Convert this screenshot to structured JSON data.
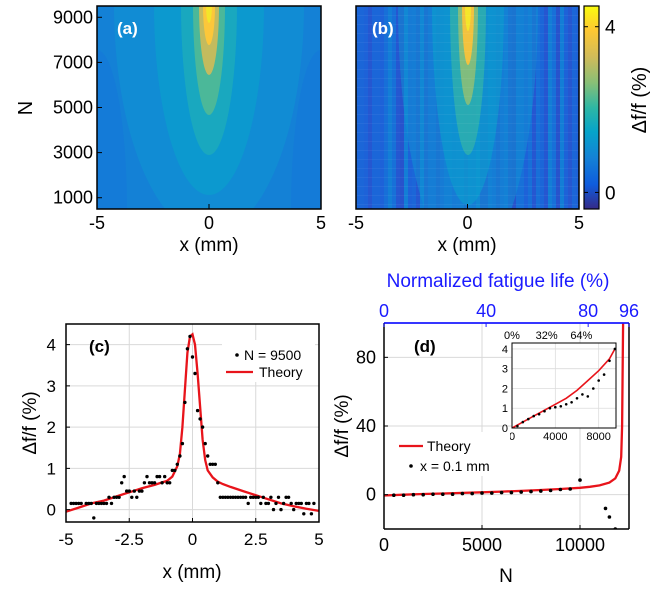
{
  "figure": {
    "panels": [
      "(a)",
      "(b)",
      "(c)",
      "(d)"
    ]
  },
  "chart_data": [
    {
      "type": "heatmap",
      "panel": "(a)",
      "xlabel": "x (mm)",
      "ylabel": "N",
      "xlim": [
        -5,
        5
      ],
      "ylim": [
        500,
        9500
      ],
      "xticks": [
        -5,
        0,
        5
      ],
      "xtick_labels": [
        "-5",
        "0",
        "5"
      ],
      "yticks": [
        1000,
        3000,
        5000,
        7000,
        9000
      ],
      "ytick_labels": [
        "1000",
        "3000",
        "5000",
        "7000",
        "9000"
      ],
      "colormap": "parula",
      "peak_x": 0,
      "peak_value_percent": 4.2
    },
    {
      "type": "heatmap",
      "panel": "(b)",
      "xlabel": "x (mm)",
      "ylabel": "",
      "xlim": [
        -5,
        5
      ],
      "ylim": [
        500,
        9500
      ],
      "xticks": [
        -5,
        0,
        5
      ],
      "xtick_labels": [
        "-5",
        "0",
        "5"
      ],
      "colormap": "parula",
      "peak_x": 0,
      "peak_value_percent": 4.3,
      "colorbar": {
        "label": "Δf/f (%)",
        "range": [
          -0.4,
          4.5
        ],
        "ticks": [
          0,
          4
        ],
        "tick_labels": [
          "0",
          "4"
        ]
      }
    },
    {
      "type": "scatter",
      "panel": "(c)",
      "xlabel": "x (mm)",
      "ylabel": "Δf/f (%)",
      "xlim": [
        -5,
        5
      ],
      "ylim": [
        -0.3,
        4.5
      ],
      "xticks": [
        -5,
        -2.5,
        0,
        2.5,
        5
      ],
      "xtick_labels": [
        "-5",
        "-2.5",
        "0",
        "2.5",
        "5"
      ],
      "yticks": [
        0,
        1,
        2,
        3,
        4
      ],
      "ytick_labels": [
        "0",
        "1",
        "2",
        "3",
        "4"
      ],
      "grid": true,
      "legend_position": "top-right",
      "series": [
        {
          "name": "N = 9500",
          "style": "dots",
          "color": "#000000",
          "x": [
            -4.8,
            -4.7,
            -4.6,
            -4.5,
            -4.4,
            -4.3,
            -4.2,
            -4.1,
            -4.0,
            -3.9,
            -3.8,
            -3.7,
            -3.6,
            -3.5,
            -3.4,
            -3.3,
            -3.2,
            -3.1,
            -3.0,
            -2.9,
            -2.8,
            -2.7,
            -2.6,
            -2.5,
            -2.4,
            -2.3,
            -2.2,
            -2.1,
            -2.0,
            -1.9,
            -1.8,
            -1.7,
            -1.6,
            -1.5,
            -1.4,
            -1.3,
            -1.2,
            -1.1,
            -1.0,
            -0.9,
            -0.8,
            -0.7,
            -0.6,
            -0.5,
            -0.4,
            -0.3,
            -0.2,
            -0.1,
            0.0,
            0.1,
            0.2,
            0.3,
            0.4,
            0.5,
            0.6,
            0.7,
            0.8,
            0.9,
            1.0,
            1.1,
            1.2,
            1.3,
            1.4,
            1.5,
            1.6,
            1.7,
            1.8,
            1.9,
            2.0,
            2.1,
            2.2,
            2.3,
            2.4,
            2.5,
            2.6,
            2.7,
            2.8,
            2.9,
            3.0,
            3.1,
            3.2,
            3.3,
            3.4,
            3.5,
            3.6,
            3.7,
            3.8,
            3.9,
            4.0,
            4.1,
            4.2,
            4.3,
            4.4,
            4.5,
            4.6,
            4.7,
            4.8
          ],
          "y": [
            0.15,
            0.15,
            0.15,
            0.15,
            0.15,
            -0.35,
            0.15,
            0.15,
            0.15,
            -0.2,
            0.15,
            0.15,
            0.15,
            0.15,
            0.15,
            0.3,
            0.15,
            0.3,
            0.3,
            0.3,
            0.65,
            0.8,
            0.45,
            0.45,
            0.3,
            0.45,
            0.3,
            0.45,
            0.45,
            0.65,
            0.8,
            0.65,
            0.65,
            0.65,
            0.8,
            0.8,
            0.65,
            0.8,
            0.65,
            0.65,
            0.95,
            0.95,
            1.1,
            1.3,
            1.6,
            2.6,
            3.9,
            4.2,
            3.7,
            3.3,
            2.4,
            2.2,
            2.0,
            1.6,
            1.3,
            1.1,
            1.1,
            1.1,
            0.65,
            0.3,
            0.3,
            0.3,
            0.3,
            0.3,
            0.3,
            0.3,
            0.3,
            0.3,
            0.3,
            0.3,
            0.15,
            0.3,
            0.3,
            0.3,
            0.3,
            0.15,
            0.3,
            0.15,
            0.15,
            0.3,
            0.0,
            0.15,
            0.3,
            0.0,
            0.15,
            0.3,
            0.3,
            0.15,
            0.0,
            0.15,
            0.15,
            0.15,
            -0.1,
            0.15,
            0.15,
            -0.1,
            0.15
          ]
        },
        {
          "name": "Theory",
          "style": "line",
          "color": "#e8141b",
          "x": [
            -5,
            -4.5,
            -4,
            -3.5,
            -3,
            -2.5,
            -2,
            -1.5,
            -1.2,
            -1,
            -0.8,
            -0.6,
            -0.5,
            -0.4,
            -0.3,
            -0.2,
            -0.1,
            0,
            0.1,
            0.2,
            0.3,
            0.4,
            0.5,
            0.6,
            0.8,
            1,
            1.2,
            1.5,
            2,
            2.5,
            3,
            3.5,
            4,
            4.5,
            5
          ],
          "y": [
            -0.05,
            0.05,
            0.15,
            0.22,
            0.32,
            0.42,
            0.52,
            0.6,
            0.66,
            0.7,
            0.8,
            1.05,
            1.35,
            2.0,
            2.9,
            3.8,
            4.2,
            4.25,
            4.0,
            3.3,
            2.5,
            1.7,
            1.2,
            0.95,
            0.78,
            0.68,
            0.62,
            0.55,
            0.45,
            0.35,
            0.25,
            0.15,
            0.08,
            0.02,
            -0.03
          ]
        }
      ]
    },
    {
      "type": "scatter",
      "panel": "(d)",
      "xlabel": "N",
      "ylabel": "Δf/f (%)",
      "top_axis_label": "Normalized fatigue life (%)",
      "top_axis_ticks": [
        "0",
        "40",
        "80",
        "96"
      ],
      "xlim": [
        0,
        12500
      ],
      "ylim": [
        -20,
        100
      ],
      "xticks": [
        0,
        5000,
        10000
      ],
      "xtick_labels": [
        "0",
        "5000",
        "10000"
      ],
      "yticks": [
        0,
        40,
        80
      ],
      "ytick_labels": [
        "0",
        "40",
        "80"
      ],
      "grid": true,
      "legend_position": "bottom-left",
      "series": [
        {
          "name": "Theory",
          "style": "line",
          "color": "#e8141b",
          "x": [
            0,
            1000,
            2000,
            3000,
            4000,
            5000,
            6000,
            7000,
            8000,
            9000,
            10000,
            10500,
            11000,
            11500,
            11800,
            12000,
            12100,
            12150,
            12200
          ],
          "y": [
            -0.5,
            0.0,
            0.4,
            0.7,
            1.0,
            1.4,
            1.8,
            2.2,
            2.7,
            3.3,
            4.0,
            4.6,
            5.4,
            7.0,
            9.5,
            14,
            22,
            40,
            100
          ]
        },
        {
          "name": "x = 0.1 mm",
          "style": "dots",
          "color": "#000000",
          "x": [
            500,
            1000,
            1500,
            2000,
            2500,
            3000,
            3500,
            4000,
            4500,
            5000,
            5500,
            6000,
            6500,
            7000,
            7500,
            8000,
            8500,
            9000,
            9500,
            10000,
            11300,
            11500,
            11800
          ],
          "y": [
            -0.3,
            -0.3,
            0.0,
            0.0,
            0.3,
            0.3,
            0.3,
            0.6,
            0.6,
            0.9,
            0.9,
            1.2,
            1.2,
            1.5,
            1.8,
            2.1,
            2.4,
            3.0,
            3.3,
            8.5,
            -8,
            -13,
            -20
          ]
        }
      ],
      "inset": {
        "top_axis_ticks": [
          "0%",
          "32%",
          "64%"
        ],
        "xlim": [
          0,
          9600
        ],
        "ylim": [
          0,
          4.3
        ],
        "xticks": [
          0,
          4000,
          8000
        ],
        "xtick_labels": [
          "0",
          "4000",
          "8000"
        ],
        "yticks": [
          0,
          1,
          2,
          3,
          4
        ],
        "ytick_labels": [
          "0",
          "1",
          "2",
          "3",
          "4"
        ],
        "series": [
          {
            "name": "Theory",
            "style": "line",
            "color": "#e8141b",
            "x": [
              0,
              1000,
              2000,
              3000,
              4000,
              5000,
              6000,
              7000,
              8000,
              9000,
              9500
            ],
            "y": [
              0.0,
              0.3,
              0.6,
              0.9,
              1.2,
              1.5,
              1.9,
              2.4,
              2.9,
              3.5,
              4.0
            ]
          },
          {
            "name": "x = 0.1 mm",
            "style": "dots",
            "color": "#000000",
            "x": [
              500,
              1000,
              1500,
              2000,
              2500,
              3000,
              3500,
              4000,
              4500,
              5000,
              5500,
              6000,
              6500,
              7000,
              7500,
              8000,
              8500,
              9000,
              9500
            ],
            "y": [
              0.1,
              0.3,
              0.45,
              0.6,
              0.7,
              0.85,
              1.0,
              1.05,
              1.1,
              1.2,
              1.3,
              1.5,
              1.7,
              1.6,
              2.0,
              2.4,
              2.7,
              3.4,
              4.0
            ]
          }
        ]
      }
    }
  ]
}
